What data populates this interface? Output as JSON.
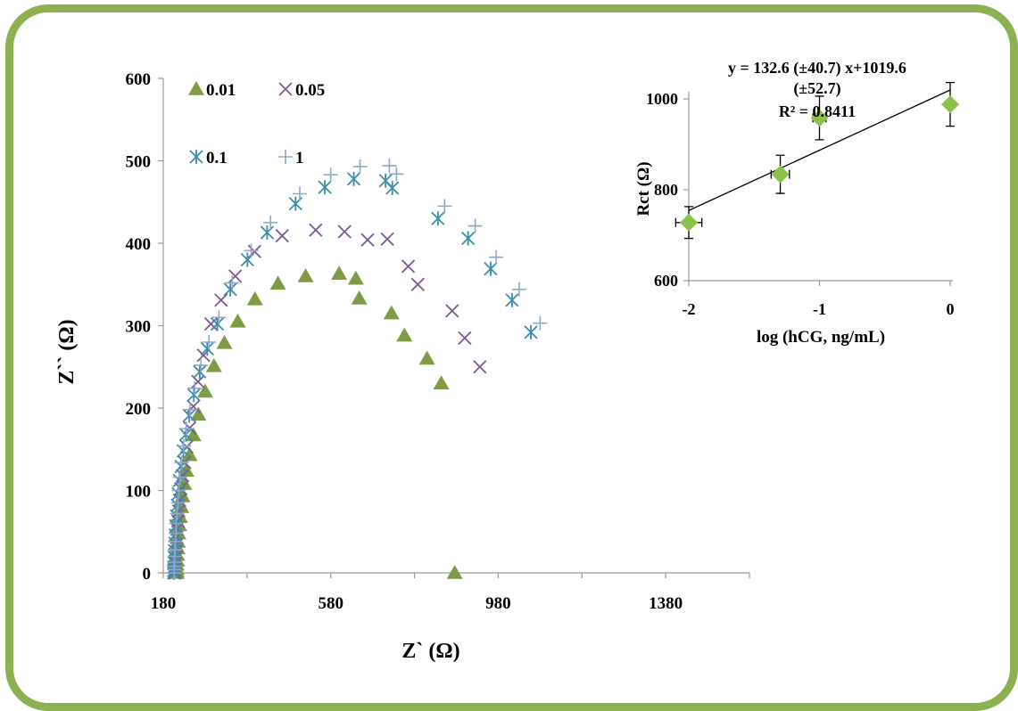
{
  "chart_data": [
    {
      "type": "scatter",
      "xlabel": "Z` (Ω)",
      "ylabel": "Z`` (Ω)",
      "xlim": [
        180,
        1580
      ],
      "ylim": [
        0,
        600
      ],
      "xticks": [
        180,
        580,
        980,
        1380
      ],
      "yticks": [
        0,
        100,
        200,
        300,
        400,
        500,
        600
      ],
      "grid": false,
      "legend_position": "top-left",
      "series": [
        {
          "name": "0.01",
          "color": "#7f9c45",
          "marker": "triangle",
          "x": [
            212,
            212,
            212,
            212,
            213,
            213,
            214,
            215,
            216,
            218,
            220,
            223,
            226,
            230,
            235,
            243,
            252,
            264,
            280,
            301,
            326,
            358,
            399,
            454,
            520,
            600,
            640,
            648,
            725,
            756,
            810,
            844,
            876
          ],
          "y": [
            0,
            2,
            5,
            10,
            15,
            22,
            30,
            38,
            48,
            58,
            68,
            80,
            93,
            108,
            124,
            143,
            167,
            192,
            220,
            251,
            279,
            305,
            332,
            351,
            360,
            363,
            357,
            333,
            315,
            288,
            260,
            230,
            0
          ]
        },
        {
          "name": "0.05",
          "color": "#7a5a96",
          "marker": "x",
          "x": [
            208,
            208,
            208,
            209,
            209,
            210,
            211,
            212,
            213,
            215,
            217,
            219,
            222,
            226,
            231,
            236,
            243,
            252,
            263,
            276,
            294,
            318,
            352,
            398,
            464,
            544,
            613,
            668,
            715,
            765,
            788,
            870,
            900,
            936
          ],
          "y": [
            0,
            3,
            7,
            12,
            18,
            26,
            34,
            43,
            53,
            63,
            75,
            88,
            102,
            118,
            134,
            153,
            176,
            202,
            232,
            264,
            302,
            331,
            360,
            390,
            409,
            416,
            414,
            404,
            405,
            372,
            350,
            318,
            285,
            250
          ]
        },
        {
          "name": "0.1",
          "color": "#3d8fa8",
          "marker": "asterisk",
          "x": [
            205,
            205,
            205,
            206,
            206,
            207,
            208,
            209,
            210,
            212,
            214,
            216,
            219,
            223,
            228,
            234,
            242,
            253,
            267,
            285,
            309,
            340,
            381,
            428,
            496,
            566,
            635,
            711,
            727,
            836,
            908,
            962,
            1013,
            1058
          ],
          "y": [
            0,
            3,
            7,
            12,
            19,
            27,
            36,
            46,
            57,
            69,
            82,
            96,
            112,
            129,
            148,
            168,
            191,
            216,
            244,
            272,
            302,
            344,
            380,
            413,
            448,
            468,
            478,
            476,
            467,
            430,
            406,
            369,
            331,
            292
          ]
        },
        {
          "name": "1",
          "color": "#8fa8cc",
          "marker": "plus",
          "x": [
            206,
            206,
            206,
            207,
            207,
            208,
            209,
            210,
            211,
            213,
            215,
            217,
            220,
            224,
            229,
            235,
            244,
            255,
            270,
            289,
            313,
            345,
            390,
            436,
            506,
            580,
            650,
            720,
            737,
            852,
            925,
            975,
            1030,
            1080
          ],
          "y": [
            0,
            4,
            8,
            13,
            20,
            28,
            38,
            48,
            60,
            72,
            85,
            100,
            116,
            134,
            154,
            175,
            198,
            224,
            252,
            280,
            310,
            352,
            391,
            425,
            460,
            483,
            493,
            494,
            484,
            445,
            421,
            383,
            344,
            303
          ]
        }
      ]
    },
    {
      "type": "scatter",
      "xlabel": "log (hCG, ng/mL)",
      "ylabel": "Rct (Ω)",
      "xlim": [
        -2,
        0
      ],
      "ylim": [
        600,
        1100
      ],
      "xticks": [
        -2,
        -1,
        0
      ],
      "yticks": [
        600,
        800,
        1000
      ],
      "grid": false,
      "color": "#8bc34a",
      "marker": "diamond",
      "points": [
        {
          "x": -2.0,
          "y": 728,
          "yerr": 35,
          "xerr": 0.1
        },
        {
          "x": -1.3,
          "y": 834,
          "yerr": 42,
          "xerr": 0.07
        },
        {
          "x": -1.0,
          "y": 958,
          "yerr": 48,
          "xerr": 0.05
        },
        {
          "x": 0.0,
          "y": 988,
          "yerr": 48,
          "xerr": 0.0
        }
      ],
      "fit": {
        "slope": 132.6,
        "intercept": 1019.6
      },
      "annotation_lines": [
        "y = 132.6 (±40.7) x+1019.6",
        "(±52.7)",
        "R² = 0.8411"
      ]
    }
  ]
}
